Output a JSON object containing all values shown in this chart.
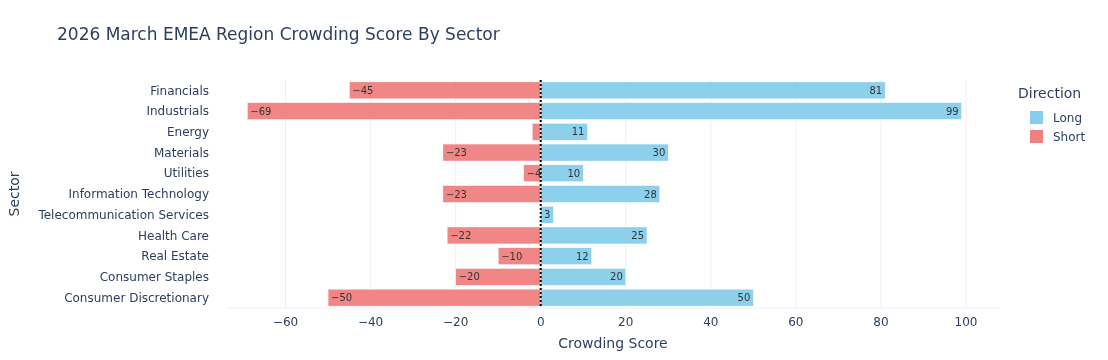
{
  "chart_data": {
    "type": "bar",
    "orientation": "horizontal",
    "title": "2026 March EMEA Region Crowding Score By Sector",
    "xlabel": "Crowding Score",
    "ylabel": "Sector",
    "legend_title": "Direction",
    "legend": "top right",
    "grid": "x",
    "categories": [
      "Financials",
      "Industrials",
      "Energy",
      "Materials",
      "Utilities",
      "Information Technology",
      "Telecommunication Services",
      "Health Care",
      "Real Estate",
      "Consumer Staples",
      "Consumer Discretionary"
    ],
    "series": [
      {
        "name": "Long",
        "color": "#87ceeb",
        "values": [
          81,
          99,
          11,
          30,
          10,
          28,
          3,
          25,
          12,
          20,
          50
        ],
        "value_labels": [
          "81",
          "99",
          "11",
          "30",
          "10",
          "28",
          "3",
          "25",
          "12",
          "20",
          "50"
        ]
      },
      {
        "name": "Short",
        "color": "#f08080",
        "values": [
          -45,
          -69,
          -2,
          -23,
          -4,
          -23,
          0,
          -22,
          -10,
          -20,
          -50
        ],
        "value_labels": [
          "−45",
          "−69",
          null,
          "−23",
          "−4",
          "−23",
          null,
          "−22",
          "−10",
          "−20",
          "−50"
        ]
      }
    ],
    "xlim": [
      -74,
      108
    ],
    "xticks": [
      {
        "value": -60,
        "label": "−60"
      },
      {
        "value": -40,
        "label": "−40"
      },
      {
        "value": -20,
        "label": "−20"
      },
      0,
      20,
      40,
      60,
      80,
      100
    ],
    "ref_lines": [
      {
        "axis": "x",
        "value": 0,
        "color": "#000000",
        "line_style": "dotted"
      }
    ]
  }
}
